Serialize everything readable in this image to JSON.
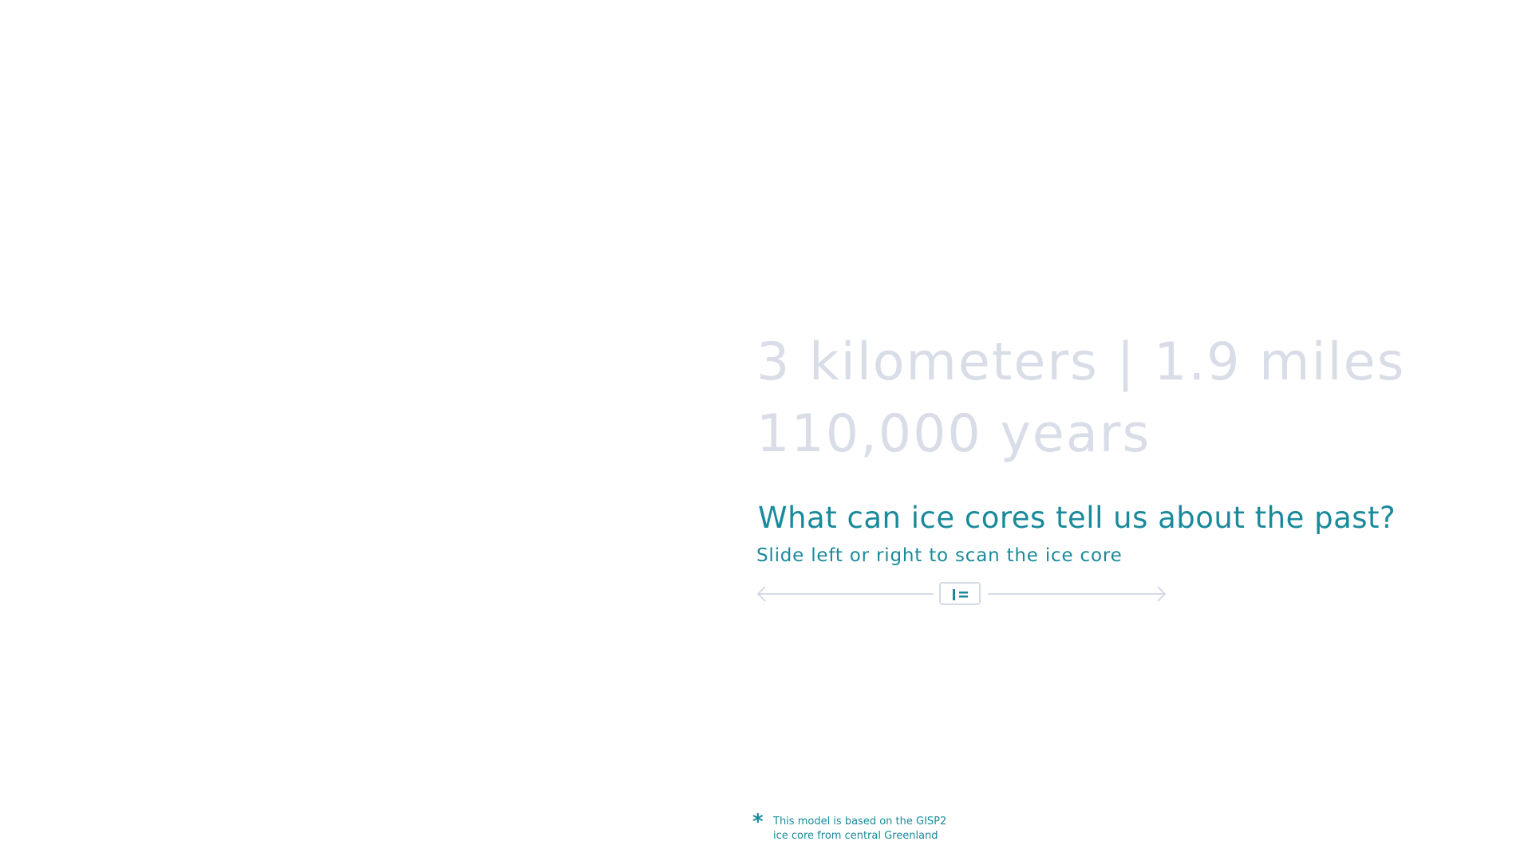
{
  "hero": {
    "depth_line": "3 kilometers  | 1.9 miles",
    "age_line": "110,000 years"
  },
  "prompt": {
    "question": "What can ice cores tell us about the past?",
    "instruction": "Slide left or right to scan the ice core"
  },
  "slider": {
    "left_icon": "arrow-left-icon",
    "right_icon": "arrow-right-icon",
    "handle_icon": "grip-icon",
    "track_color": "#d6dae7",
    "accent_color": "#1a8a9b"
  },
  "footnote": {
    "icon": "asterisk-icon",
    "line1": "This model is based on the GISP2",
    "line2": "ice core from central Greenland"
  },
  "colors": {
    "stat_text": "#d8dde7",
    "accent": "#1a8a9b",
    "background": "#ffffff"
  }
}
